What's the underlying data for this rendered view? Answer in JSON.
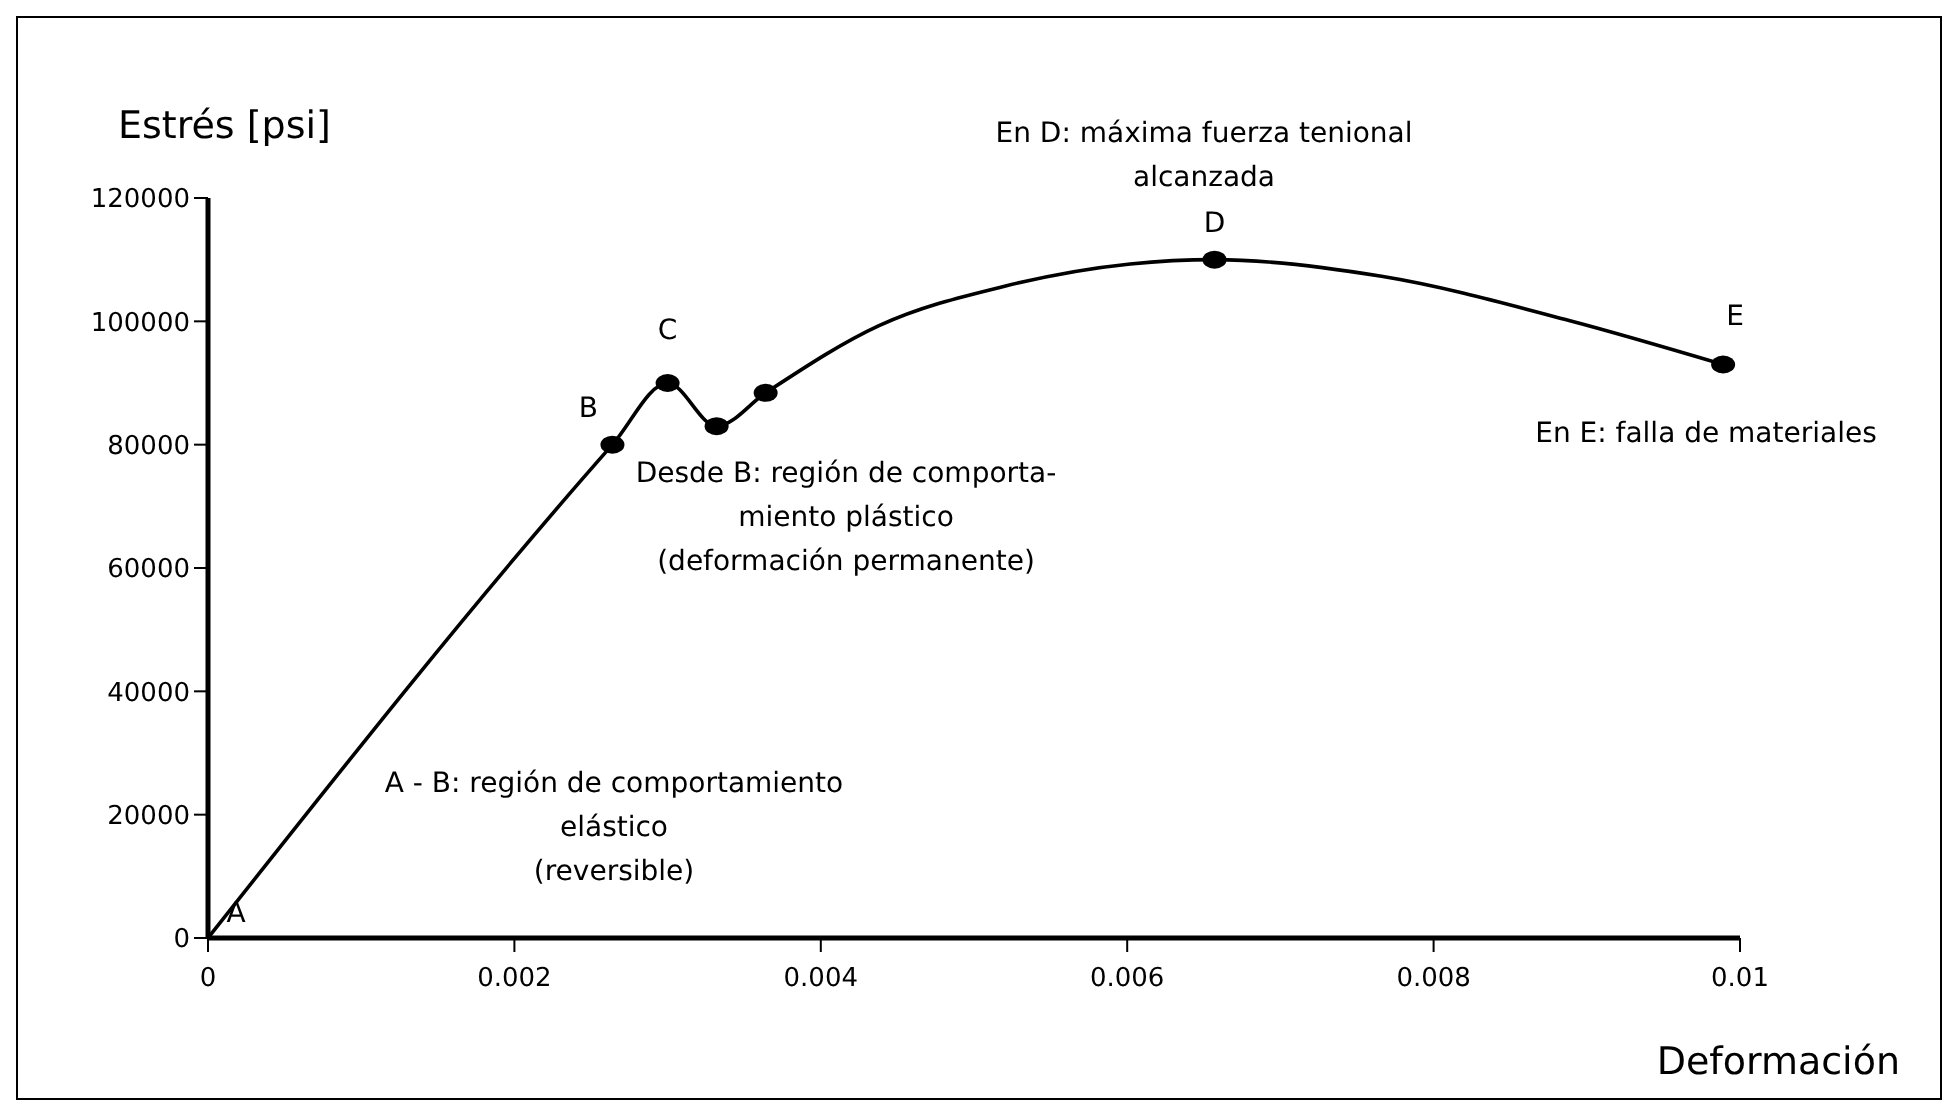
{
  "chart_data": {
    "type": "line",
    "xlabel": "Deformación",
    "ylabel": "Estrés [psi]",
    "xlim": [
      0,
      0.01
    ],
    "xticks": [
      0,
      0.002,
      0.004,
      0.006,
      0.008,
      0.01
    ],
    "ylim": [
      0,
      120000
    ],
    "yticks": [
      0,
      20000,
      40000,
      60000,
      80000,
      100000,
      120000
    ],
    "grid": false,
    "legend": false,
    "series": [
      {
        "color": "#000000",
        "marker": "none",
        "x": [
          0,
          0.00264,
          0.003,
          0.00332,
          0.00364,
          0.00438,
          0.0052,
          0.00602,
          0.00657,
          0.00766,
          0.00889,
          0.00989
        ],
        "values": [
          0,
          80000,
          90000,
          83000,
          88400,
          99300,
          105700,
          109300,
          110000,
          107300,
          100100,
          93000
        ]
      },
      {
        "type": "scatter",
        "color": "#000000",
        "marker": "circle",
        "x": [
          0.00264,
          0.003,
          0.00332,
          0.00364,
          0.00657,
          0.00989
        ],
        "values": [
          80000,
          90000,
          83000,
          88400,
          110000,
          93000
        ]
      }
    ],
    "annotations": [
      {
        "text": "A",
        "x": 0,
        "y": 0
      },
      {
        "text": "B",
        "x": 0.00264,
        "y": 80000
      },
      {
        "text": "C",
        "x": 0.003,
        "y": 90000
      },
      {
        "text": "D",
        "x": 0.00657,
        "y": 110000
      },
      {
        "text": "E",
        "x": 0.00989,
        "y": 93000
      },
      "A - B: región de comportamiento\nelástico\n(reversible)",
      "Desde B: región de comporta-\nmiento plástico\n(deformación permanente)",
      "En D:  máxima fuerza tenional\nalcanzada",
      "En E:  falla de materiales"
    ]
  }
}
